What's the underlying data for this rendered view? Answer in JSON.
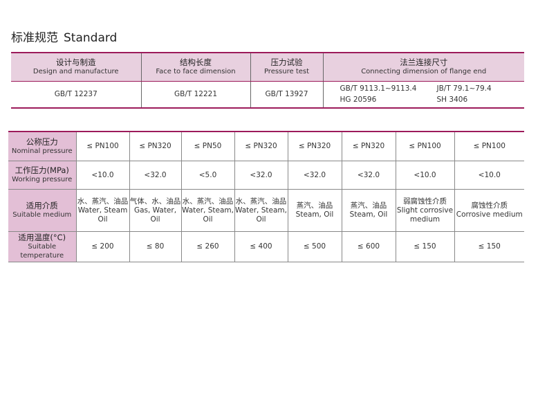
{
  "title": {
    "cn": "标准规范",
    "en": "Standard"
  },
  "standards_table": {
    "headers": [
      {
        "cn": "设计与制造",
        "en": "Design and manufacture"
      },
      {
        "cn": "结构长度",
        "en": "Face to face dimension"
      },
      {
        "cn": "压力试验",
        "en": "Pressure test"
      },
      {
        "cn": "法兰连接尺寸",
        "en": "Connecting dimension of flange end"
      }
    ],
    "values": [
      "GB/T 12237",
      "GB/T 12221",
      "GB/T 13927"
    ],
    "flange": [
      "GB/T 9113.1~9113.4",
      "JB/T 79.1~79.4",
      "HG 20596",
      "SH 3406"
    ]
  },
  "spec_table": {
    "rows": [
      {
        "label_cn": "公称压力",
        "label_en": "Nominal pressure",
        "cells": [
          "≤ PN100",
          "≤ PN320",
          "≤ PN50",
          "≤ PN320",
          "≤ PN320",
          "≤ PN320",
          "≤ PN100",
          "≤ PN100"
        ]
      },
      {
        "label_cn": "工作压力(MPa)",
        "label_en": "Working pressure",
        "cells": [
          "<10.0",
          "<32.0",
          "<5.0",
          "<32.0",
          "<32.0",
          "<32.0",
          "<10.0",
          "<10.0"
        ]
      },
      {
        "label_cn": "适用介质",
        "label_en": "Suitable medium",
        "cells": [
          {
            "cn": "水、蒸汽、油品",
            "en": "Water, Steam Oil"
          },
          {
            "cn": "气体、水、油品",
            "en": "Gas, Water, Oil"
          },
          {
            "cn": "水、蒸汽、油品",
            "en": "Water, Steam, Oil"
          },
          {
            "cn": "水、蒸汽、油品",
            "en": "Water, Steam, Oil"
          },
          {
            "cn": "蒸汽、油品",
            "en": "Steam, Oil"
          },
          {
            "cn": "蒸汽、油品",
            "en": "Steam, Oil"
          },
          {
            "cn": "弱腐蚀性介质",
            "en": "Slight corrosive medium"
          },
          {
            "cn": "腐蚀性介质",
            "en": "Corrosive medium"
          }
        ]
      },
      {
        "label_cn": "适用温度(°C)",
        "label_en": "Suitable temperature",
        "cells": [
          "≤ 200",
          "≤ 80",
          "≤ 260",
          "≤ 400",
          "≤ 500",
          "≤ 600",
          "≤ 150",
          "≤ 150"
        ]
      }
    ]
  },
  "colors": {
    "accent": "#9c1a5a",
    "header_bg": "#e8d0df",
    "label_bg": "#e3bfd6"
  }
}
